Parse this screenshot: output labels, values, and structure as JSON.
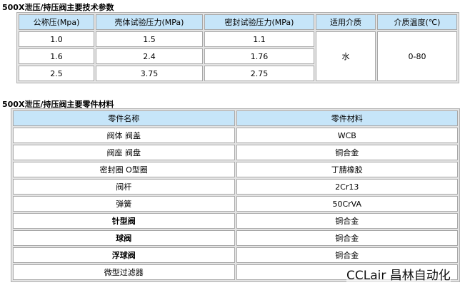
{
  "params": {
    "title": "500X泄压/持压阀主要技术参数",
    "headers": [
      "公称压(Mpa)",
      "壳体试验压力(MPa)",
      "密封试验压力(MPa)",
      "适用介质",
      "介质温度(℃)"
    ],
    "rows": [
      [
        "1.0",
        "1.5",
        "1.1"
      ],
      [
        "1.6",
        "2.4",
        "1.76"
      ],
      [
        "2.5",
        "3.75",
        "2.75"
      ]
    ],
    "medium": "水",
    "temperature": "0-80"
  },
  "materials": {
    "title": "500X泄压/持压阀主要零件材料",
    "headers": [
      "零件名称",
      "零件材料"
    ],
    "rows": [
      [
        "阀体 阀盖",
        "WCB"
      ],
      [
        "阀座 阀盘",
        "铜合金"
      ],
      [
        "密封圈 O型圈",
        "丁腈橡胶"
      ],
      [
        "阀杆",
        "2Cr13"
      ],
      [
        "弹簧",
        "50CrVA"
      ],
      [
        "针型阀",
        "铜合金"
      ],
      [
        "球阀",
        "铜合金"
      ],
      [
        "浮球阀",
        "铜合金"
      ],
      [
        "微型过滤器",
        ""
      ]
    ]
  },
  "watermark": "CCLair 昌林自动化"
}
